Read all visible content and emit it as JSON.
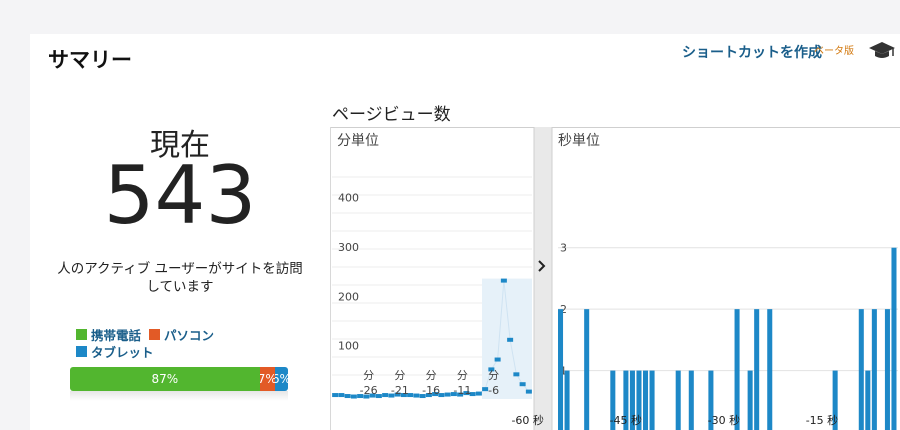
{
  "header": {
    "title": "サマリー",
    "shortcut_label": "ショートカットを作成",
    "beta_label": "ベータ版",
    "cap_icon": "graduation-cap-icon"
  },
  "active": {
    "now_label": "現在",
    "count": "543",
    "description_line1": "人のアクティブ ユーザーがサイトを訪問",
    "description_line2": "しています"
  },
  "devices": {
    "legend": [
      {
        "label": "携帯電話",
        "color": "#52b62f"
      },
      {
        "label": "パソコン",
        "color": "#e25a26"
      },
      {
        "label": "タブレット",
        "color": "#1d88c7"
      }
    ],
    "segments": [
      {
        "label": "87%",
        "value": 87,
        "color": "#52b62f"
      },
      {
        "label": "7%",
        "value": 7,
        "color": "#e25a26"
      },
      {
        "label": "6%",
        "value": 6,
        "color": "#1d88c7"
      }
    ]
  },
  "pageviews": {
    "title": "ページビュー数",
    "expand_icon": "chevron-right-icon",
    "per_minute": {
      "label": "分単位",
      "yticks": [
        100,
        200,
        300,
        400
      ],
      "ymax": 450,
      "xticks": [
        {
          "label_top": "分",
          "label_bottom": "-26",
          "at": -26
        },
        {
          "label_top": "分",
          "label_bottom": "-21",
          "at": -21
        },
        {
          "label_top": "分",
          "label_bottom": "-16",
          "at": -16
        },
        {
          "label_top": "分",
          "label_bottom": "-11",
          "at": -11
        },
        {
          "label_top": "分",
          "label_bottom": "-6",
          "at": -6
        }
      ],
      "values": [
        8,
        8,
        6,
        5,
        6,
        5,
        7,
        6,
        8,
        7,
        9,
        8,
        8,
        7,
        6,
        8,
        10,
        8,
        9,
        10,
        9,
        12,
        10,
        11,
        20,
        60,
        80,
        240,
        120,
        50,
        30,
        15
      ]
    },
    "per_second": {
      "label": "秒単位",
      "yticks": [
        1,
        2,
        3
      ],
      "ymax": 3.5,
      "xticks": [
        {
          "label": "-60 秒",
          "at": -60
        },
        {
          "label": "-45 秒",
          "at": -45
        },
        {
          "label": "-30 秒",
          "at": -30
        },
        {
          "label": "-15 秒",
          "at": -15
        }
      ],
      "values": [
        2,
        1,
        0,
        0,
        2,
        0,
        0,
        0,
        1,
        0,
        1,
        1,
        1,
        1,
        1,
        0,
        0,
        0,
        1,
        0,
        1,
        0,
        0,
        1,
        0,
        0,
        0,
        2,
        0,
        1,
        2,
        0,
        2,
        0,
        0,
        0,
        0,
        0,
        0,
        0,
        0,
        0,
        1,
        0,
        0,
        0,
        2,
        1,
        2,
        0,
        2,
        3
      ]
    }
  }
}
